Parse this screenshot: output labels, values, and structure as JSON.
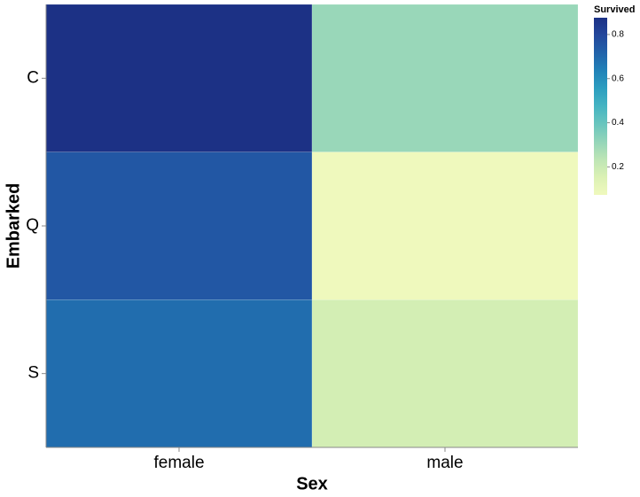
{
  "chart_data": {
    "type": "heatmap",
    "x_label": "Sex",
    "y_label": "Embarked",
    "colorbar_title": "Survived",
    "x_categories": [
      "female",
      "male"
    ],
    "y_categories": [
      "C",
      "Q",
      "S"
    ],
    "values": [
      [
        0.876,
        0.305
      ],
      [
        0.75,
        0.073
      ],
      [
        0.69,
        0.174
      ]
    ],
    "zlim": [
      0.073,
      0.876
    ],
    "zticks": [
      0.2,
      0.4,
      0.6,
      0.8
    ],
    "colorscale": [
      "#eff9bd",
      "#dbf1b4",
      "#bde5b5",
      "#94d5b9",
      "#69c5be",
      "#45b4c2",
      "#2c9ec0",
      "#2182b8",
      "#2163aa",
      "#23479c",
      "#1c3185"
    ]
  }
}
